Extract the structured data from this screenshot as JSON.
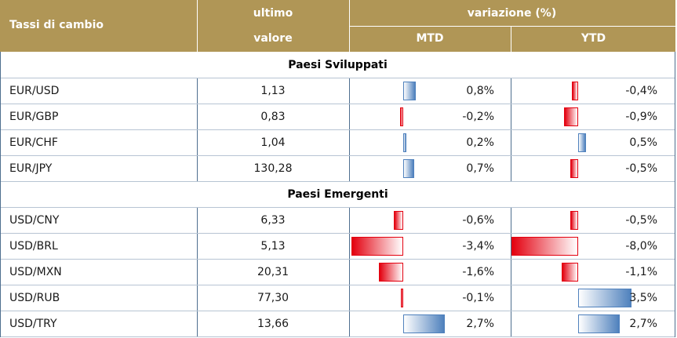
{
  "header": {
    "col1": "Tassi di cambio",
    "col2_line1": "ultimo",
    "col2_line2": "valore",
    "group": "variazione (%)",
    "mtd": "MTD",
    "ytd": "YTD"
  },
  "sections": [
    {
      "title": "Paesi Sviluppati",
      "rows": [
        {
          "pair": "EUR/USD",
          "value": "1,13",
          "mtd": 0.8,
          "mtd_label": "0,8%",
          "ytd": -0.4,
          "ytd_label": "-0,4%"
        },
        {
          "pair": "EUR/GBP",
          "value": "0,83",
          "mtd": -0.2,
          "mtd_label": "-0,2%",
          "ytd": -0.9,
          "ytd_label": "-0,9%"
        },
        {
          "pair": "EUR/CHF",
          "value": "1,04",
          "mtd": 0.2,
          "mtd_label": "0,2%",
          "ytd": 0.5,
          "ytd_label": "0,5%"
        },
        {
          "pair": "EUR/JPY",
          "value": "130,28",
          "mtd": 0.7,
          "mtd_label": "0,7%",
          "ytd": -0.5,
          "ytd_label": "-0,5%"
        }
      ]
    },
    {
      "title": "Paesi Emergenti",
      "rows": [
        {
          "pair": "USD/CNY",
          "value": "6,33",
          "mtd": -0.6,
          "mtd_label": "-0,6%",
          "ytd": -0.5,
          "ytd_label": "-0,5%"
        },
        {
          "pair": "USD/BRL",
          "value": "5,13",
          "mtd": -3.4,
          "mtd_label": "-3,4%",
          "ytd": -8.0,
          "ytd_label": "-8,0%"
        },
        {
          "pair": "USD/MXN",
          "value": "20,31",
          "mtd": -1.6,
          "mtd_label": "-1,6%",
          "ytd": -1.1,
          "ytd_label": "-1,1%"
        },
        {
          "pair": "USD/RUB",
          "value": "77,30",
          "mtd": -0.1,
          "mtd_label": "-0,1%",
          "ytd": 3.5,
          "ytd_label": "3,5%"
        },
        {
          "pair": "USD/TRY",
          "value": "13,66",
          "mtd": 2.7,
          "mtd_label": "2,7%",
          "ytd": 2.7,
          "ytd_label": "2,7%"
        }
      ]
    }
  ],
  "colors": {
    "header_bg": "#b09656",
    "positive": "#4f81bd",
    "negative": "#e3000f"
  }
}
